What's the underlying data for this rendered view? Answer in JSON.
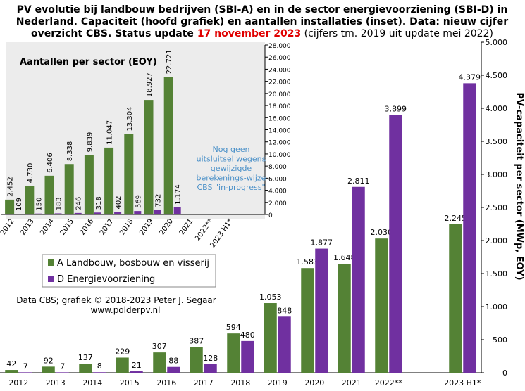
{
  "chart_data": [
    {
      "type": "bar",
      "title_parts": [
        "PV evolutie bij landbouw bedrijven (SBI-A) en in de sector energievoorziening (SBI-D) in",
        "Nederland. Capaciteit (hoofd grafiek) en aantallen installaties (inset). Data: nieuw cijfer",
        "overzicht CBS. Status update ",
        "17 november 2023",
        " (cijfers tm. 2019 uit update mei 2022)"
      ],
      "ylabel": "PV-capaciteit per sector (MWp, EOY)",
      "credits": [
        "Data CBS; grafiek © 2018-2023 Peter J. Segaar",
        "www.polderpv.nl"
      ],
      "categories": [
        "2012",
        "2013",
        "2014",
        "2015",
        "2016",
        "2017",
        "2018",
        "2019",
        "2020",
        "2021",
        "2022**",
        null,
        "2023 H1*"
      ],
      "series": [
        {
          "name": "A Landbouw, bosbouw en visserij",
          "color": "#548235",
          "values": [
            42,
            92,
            137,
            229,
            307,
            387,
            594,
            1053,
            1583,
            1648,
            2030,
            null,
            2245
          ],
          "value_labels": [
            "42",
            "92",
            "137",
            "229",
            "307",
            "387",
            "594",
            "1.053",
            "1.583",
            "1.648",
            "2.030",
            null,
            "2.245"
          ]
        },
        {
          "name": "D Energievoorziening",
          "color": "#7030a0",
          "values": [
            7,
            7,
            8,
            21,
            88,
            128,
            480,
            848,
            1877,
            2811,
            3899,
            null,
            4379
          ],
          "value_labels": [
            "7",
            "7",
            "8",
            "21",
            "88",
            "128",
            "480",
            "848",
            "1.877",
            "2.811",
            "3.899",
            null,
            "4.379"
          ]
        }
      ],
      "ylim": [
        0,
        5000
      ],
      "yticks": [
        0,
        500,
        {
          "value": 1000,
          "label": "1.000"
        },
        {
          "value": 1500,
          "label": "1.500"
        },
        {
          "value": 2000,
          "label": "2.000"
        },
        {
          "value": 2500,
          "label": "2.500"
        },
        {
          "value": 3000,
          "label": "3.000"
        },
        {
          "value": 3500,
          "label": "3.500"
        },
        {
          "value": 4000,
          "label": "4.000"
        },
        {
          "value": 4500,
          "label": "4.500"
        },
        {
          "value": 5000,
          "label": "5.000"
        }
      ],
      "legend": "lower left"
    },
    {
      "type": "bar",
      "title": "Aantallen per sector (EOY)",
      "annotation": [
        "Nog geen",
        "uitsluitsel wegens",
        "gewijzigde",
        "berekenings-wijze",
        "CBS \"in-progress\""
      ],
      "categories": [
        "2012",
        "2013",
        "2014",
        "2015",
        "2016",
        "2017",
        "2018",
        "2019",
        "2020",
        "2021",
        "2022**",
        "2023 H1*"
      ],
      "series": [
        {
          "color": "#548235",
          "values": [
            2452,
            4730,
            6406,
            8338,
            9839,
            11047,
            13304,
            18927,
            22721,
            null,
            null,
            null
          ],
          "value_labels": [
            "2.452",
            "4.730",
            "6.406",
            "8.338",
            "9.839",
            "11.047",
            "13.304",
            "18.927",
            "22.721",
            null,
            null,
            null
          ]
        },
        {
          "color": "#7030a0",
          "values": [
            109,
            150,
            183,
            246,
            318,
            402,
            569,
            732,
            1174,
            null,
            null,
            null
          ],
          "value_labels": [
            "109",
            "150",
            "183",
            "246",
            "318",
            "402",
            "569",
            "732",
            "1.174",
            null,
            null,
            null
          ]
        }
      ],
      "ylim": [
        0,
        28000
      ],
      "yticks": [
        0,
        {
          "value": 2000,
          "label": "2.000"
        },
        {
          "value": 4000,
          "label": "4.000"
        },
        {
          "value": 6000,
          "label": "6.000"
        },
        {
          "value": 8000,
          "label": "8.000"
        },
        {
          "value": 10000,
          "label": "10.000"
        },
        {
          "value": 12000,
          "label": "12.000"
        },
        {
          "value": 14000,
          "label": "14.000"
        },
        {
          "value": 16000,
          "label": "16.000"
        },
        {
          "value": 18000,
          "label": "18.000"
        },
        {
          "value": 20000,
          "label": "20.000"
        },
        {
          "value": 22000,
          "label": "22.000"
        },
        {
          "value": 24000,
          "label": "24.000"
        },
        {
          "value": 26000,
          "label": "26.000"
        },
        {
          "value": 28000,
          "label": "28.000"
        }
      ]
    }
  ]
}
